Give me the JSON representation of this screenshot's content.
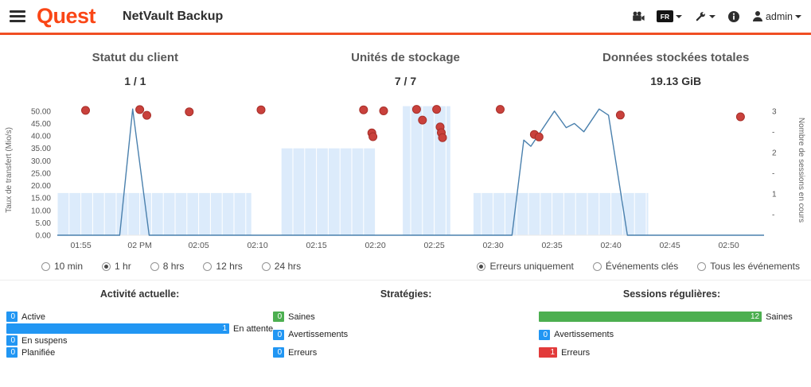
{
  "header": {
    "brand": "Quest",
    "app_title": "NetVault Backup",
    "language_badge": "FR",
    "user": "admin"
  },
  "colors": {
    "accent_orange": "#f04e23",
    "brand_orange": "#fa4616",
    "bar_blue": "#2196f3",
    "bar_green": "#4caf50",
    "bar_red": "#e23b3b",
    "error_dot": "#c9413c",
    "sessions_line": "#4a80ad",
    "transfer_fill": "#dcebfb"
  },
  "stats": [
    {
      "title": "Statut du client",
      "value": "1 / 1"
    },
    {
      "title": "Unités de stockage",
      "value": "7 / 7"
    },
    {
      "title": "Données stockées totales",
      "value": "19.13 GiB"
    }
  ],
  "time_filters": {
    "options": [
      "10 min",
      "1 hr",
      "8 hrs",
      "12 hrs",
      "24 hrs"
    ],
    "selected": "1 hr"
  },
  "event_filters": {
    "options": [
      "Erreurs uniquement",
      "Événements clés",
      "Tous les événements"
    ],
    "selected": "Erreurs uniquement"
  },
  "chart_data": {
    "type": "mixed-bars-line-scatter",
    "x_axis": {
      "unit": "minutes from 01:53 PM",
      "start_minute": 0,
      "end_minute": 60,
      "ticks": [
        {
          "t": 2,
          "label": "01:55"
        },
        {
          "t": 7,
          "label": "02 PM"
        },
        {
          "t": 12,
          "label": "02:05"
        },
        {
          "t": 17,
          "label": "02:10"
        },
        {
          "t": 22,
          "label": "02:15"
        },
        {
          "t": 27,
          "label": "02:20"
        },
        {
          "t": 32,
          "label": "02:25"
        },
        {
          "t": 37,
          "label": "02:30"
        },
        {
          "t": 42,
          "label": "02:35"
        },
        {
          "t": 47,
          "label": "02:40"
        },
        {
          "t": 52,
          "label": "02:45"
        },
        {
          "t": 57,
          "label": "02:50"
        }
      ]
    },
    "left_axis": {
      "label": "Taux de transfert (Mio/s)",
      "min": 0,
      "max": 52.5,
      "ticks": [
        0,
        5,
        10,
        15,
        20,
        25,
        30,
        35,
        40,
        45,
        50
      ]
    },
    "right_axis": {
      "label": "Nombre de sessions en cours",
      "min": 0,
      "max": 3.15,
      "ticks": [
        1,
        2,
        3
      ],
      "minor_ticks": [
        0.5,
        1.5,
        2.5
      ]
    },
    "transfer_rate": {
      "axis": "left",
      "color": "#dcebfb",
      "segments": [
        {
          "from": 0,
          "to": 16.5,
          "value": 17
        },
        {
          "from": 19,
          "to": 27,
          "value": 35
        },
        {
          "from": 29.3,
          "to": 33.4,
          "value": 52
        },
        {
          "from": 35.3,
          "to": 50.2,
          "value": 17
        }
      ]
    },
    "sessions": {
      "axis": "right",
      "color": "#4a80ad",
      "points": [
        [
          0,
          0
        ],
        [
          5.3,
          0
        ],
        [
          6.4,
          3.05
        ],
        [
          7.8,
          0
        ],
        [
          38.6,
          0
        ],
        [
          39.6,
          2.3
        ],
        [
          40.2,
          2.15
        ],
        [
          42.2,
          3.0
        ],
        [
          43.2,
          2.6
        ],
        [
          43.9,
          2.7
        ],
        [
          44.7,
          2.5
        ],
        [
          46.0,
          3.05
        ],
        [
          46.8,
          2.9
        ],
        [
          48.4,
          0
        ],
        [
          60,
          0
        ]
      ]
    },
    "errors": {
      "axis": "left",
      "color": "#c9413c",
      "stroke": "#a82f29",
      "points": [
        [
          2.4,
          50.3
        ],
        [
          7.0,
          50.6
        ],
        [
          7.6,
          48.3
        ],
        [
          11.2,
          49.7
        ],
        [
          17.3,
          50.5
        ],
        [
          26.0,
          50.5
        ],
        [
          26.7,
          41.2
        ],
        [
          26.8,
          39.7
        ],
        [
          27.7,
          50.1
        ],
        [
          30.5,
          50.7
        ],
        [
          31.0,
          46.4
        ],
        [
          32.2,
          50.7
        ],
        [
          32.5,
          43.6
        ],
        [
          32.6,
          41.3
        ],
        [
          32.7,
          39.3
        ],
        [
          37.6,
          50.7
        ],
        [
          40.5,
          40.6
        ],
        [
          40.9,
          39.6
        ],
        [
          47.8,
          48.4
        ],
        [
          58.0,
          47.7
        ]
      ]
    }
  },
  "activity_groups": [
    {
      "title": "Activité actuelle:",
      "rows": [
        {
          "value": 0,
          "label": "Active",
          "color": "#2196f3"
        },
        {
          "value": 1,
          "label": "En attente",
          "color": "#2196f3"
        },
        {
          "value": 0,
          "label": "En suspens",
          "color": "#2196f3"
        },
        {
          "value": 0,
          "label": "Planifiée",
          "color": "#2196f3"
        }
      ]
    },
    {
      "title": "Stratégies:",
      "rows": [
        {
          "value": 0,
          "label": "Saines",
          "color": "#4caf50"
        },
        {
          "value": 0,
          "label": "Avertissements",
          "color": "#2196f3"
        },
        {
          "value": 0,
          "label": "Erreurs",
          "color": "#2196f3"
        }
      ]
    },
    {
      "title": "Sessions régulières:",
      "rows": [
        {
          "value": 12,
          "label": "Saines",
          "color": "#4caf50"
        },
        {
          "value": 0,
          "label": "Avertissements",
          "color": "#2196f3"
        },
        {
          "value": 1,
          "label": "Erreurs",
          "color": "#e23b3b"
        }
      ]
    }
  ]
}
